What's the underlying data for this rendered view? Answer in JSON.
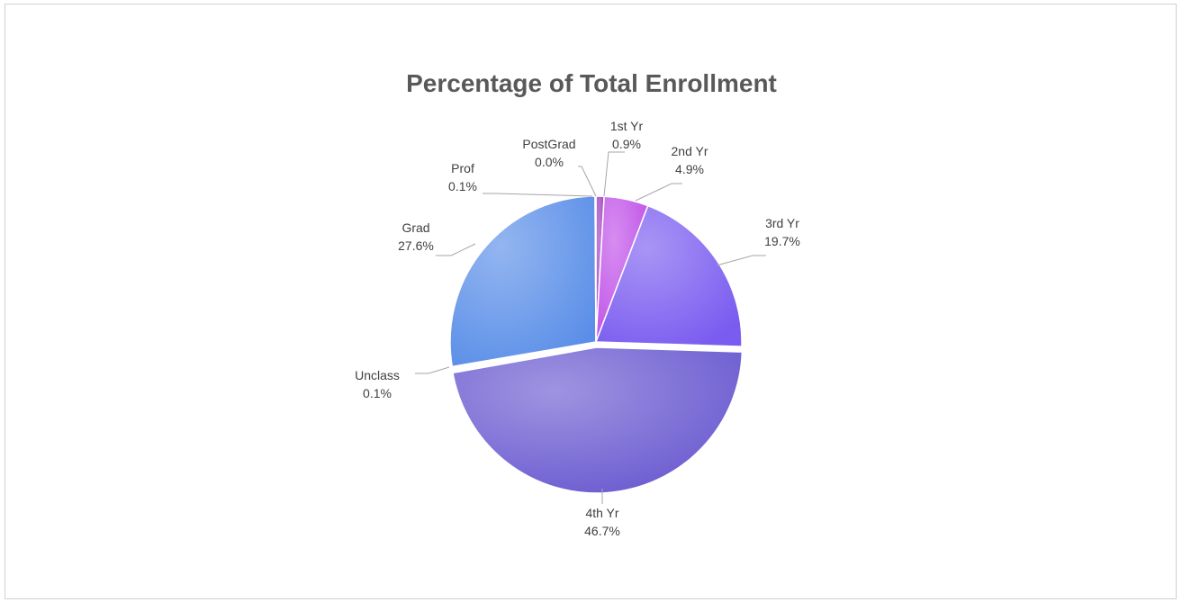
{
  "chart_data": {
    "type": "pie",
    "title": "Percentage of Total Enrollment",
    "categories": [
      "1st Yr",
      "2nd Yr",
      "3rd Yr",
      "4th Yr",
      "Unclass",
      "Grad",
      "Prof",
      "PostGrad"
    ],
    "values": [
      0.9,
      4.9,
      19.7,
      46.7,
      0.1,
      27.6,
      0.1,
      0.0
    ],
    "value_labels": [
      "0.9%",
      "4.9%",
      "19.7%",
      "46.7%",
      "0.1%",
      "27.6%",
      "0.1%",
      "0.0%"
    ],
    "colors": [
      "#a040c0",
      "#c050e8",
      "#7a5cf0",
      "#6a5ad0",
      "#8a8ae0",
      "#5a8ee8",
      "#6080e0",
      "#9040b0"
    ],
    "start_angle_deg": 0,
    "direction": "clockwise",
    "legend": "none"
  }
}
